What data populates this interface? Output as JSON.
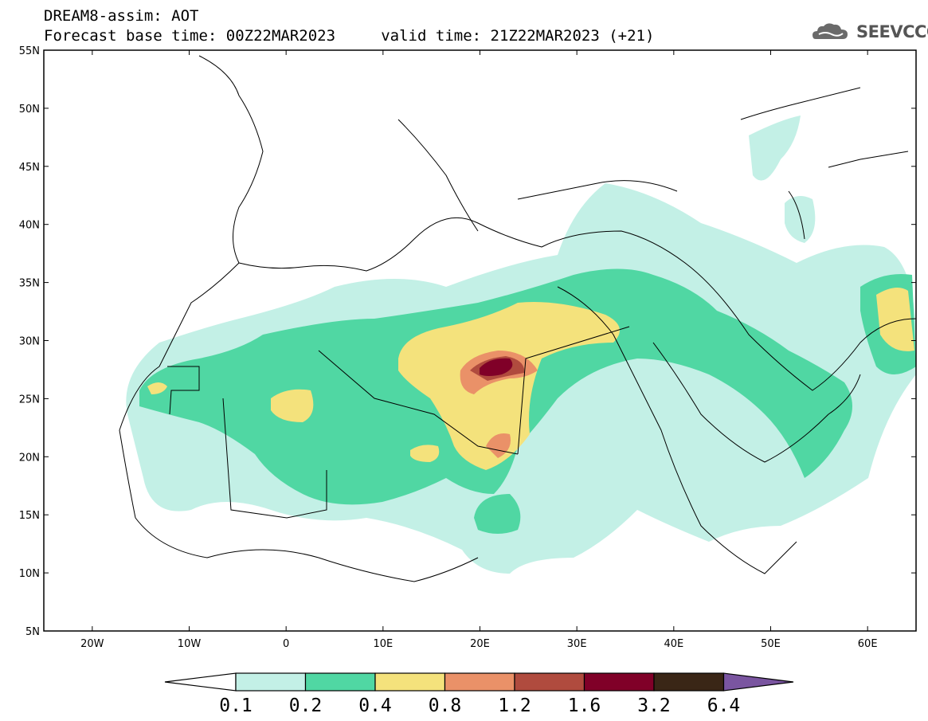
{
  "header": {
    "title": "DREAM8-assim: AOT",
    "subtitle": "Forecast base time: 00Z22MAR2023     valid time: 21Z22MAR2023 (+21)",
    "logo_text": "SEEVCCC",
    "logo_icon": "cloud-logo-icon"
  },
  "map": {
    "lon_range": [
      -25,
      65
    ],
    "lat_range": [
      5,
      55
    ],
    "lat_ticks": [
      "55N",
      "50N",
      "45N",
      "40N",
      "35N",
      "30N",
      "25N",
      "20N",
      "15N",
      "10N",
      "5N"
    ],
    "lon_ticks": [
      "20W",
      "10W",
      "0",
      "10E",
      "20E",
      "30E",
      "40E",
      "50E",
      "60E"
    ]
  },
  "legend": {
    "labels": [
      "0.1",
      "0.2",
      "0.4",
      "0.8",
      "1.2",
      "1.6",
      "3.2",
      "6.4"
    ],
    "colors": [
      "#ffffff",
      "#c3f0e6",
      "#50d7a3",
      "#f4e27c",
      "#ea9168",
      "#b04b3e",
      "#800028",
      "#3a2616",
      "#7a55a0"
    ]
  }
}
